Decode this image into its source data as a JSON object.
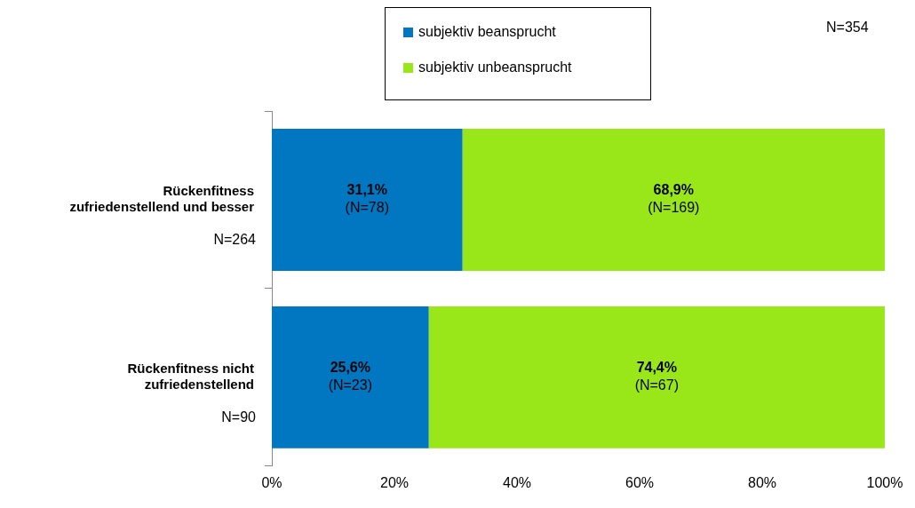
{
  "chart_data": {
    "type": "bar",
    "orientation": "horizontal",
    "stacked": true,
    "categories": [
      "Rückenfitness zufriedenstellend und besser",
      "Rückenfitness nicht zufriedenstellend"
    ],
    "series": [
      {
        "name": "subjektiv beansprucht",
        "color": "#0077c0",
        "values": [
          31.1,
          25.6
        ],
        "value_labels": [
          "31,1%\n(N=78)",
          "25,6%\n(N=23)"
        ]
      },
      {
        "name": "subjektiv unbeansprucht",
        "color": "#99e619",
        "values": [
          68.9,
          74.4
        ],
        "value_labels": [
          "68,9%\n(N=169)",
          "74,4%\n(N=67)"
        ]
      }
    ],
    "xlim": [
      0,
      100
    ],
    "xticks": [
      {
        "value": 0,
        "label": "0%"
      },
      {
        "value": 20,
        "label": "20%"
      },
      {
        "value": 40,
        "label": "40%"
      },
      {
        "value": 60,
        "label": "60%"
      },
      {
        "value": 80,
        "label": "80%"
      },
      {
        "value": 100,
        "label": "100%"
      }
    ],
    "grid": false,
    "legend": "top",
    "annotations": [
      "N=354",
      "N=264",
      "N=90"
    ]
  }
}
